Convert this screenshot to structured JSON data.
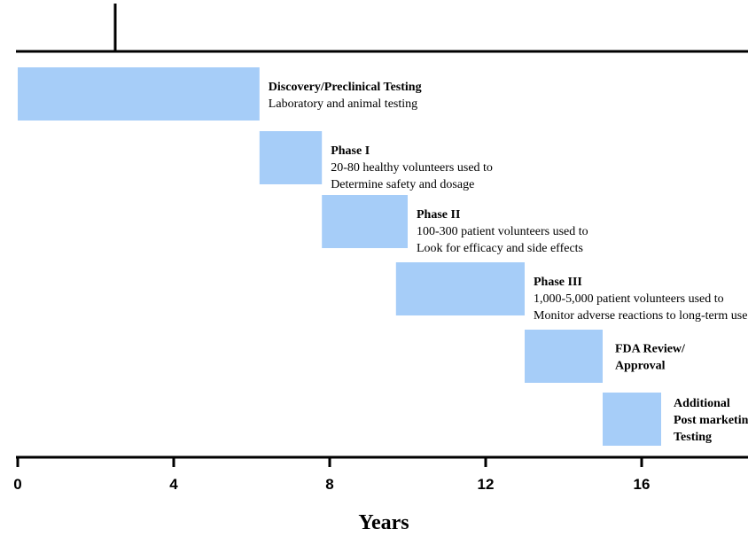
{
  "chart_data": {
    "type": "gantt",
    "xlabel": "Years",
    "xlim": [
      0,
      19.3
    ],
    "x_ticks": [
      0,
      4,
      8,
      12,
      16
    ],
    "x_tick_labels": [
      "0",
      "4",
      "8",
      "12",
      "16"
    ],
    "top_rule_marker_year": 2.5,
    "bar_color": "#a6cdf8",
    "phases": [
      {
        "start": 0.0,
        "end": 6.2,
        "title": "Discovery/Preclinical Testing",
        "lines": [
          "Laboratory and animal testing"
        ]
      },
      {
        "start": 6.2,
        "end": 7.8,
        "title": "Phase I",
        "lines": [
          "20-80 healthy volunteers used to",
          "Determine safety and dosage"
        ]
      },
      {
        "start": 7.8,
        "end": 10.0,
        "title": "Phase II",
        "lines": [
          "100-300 patient volunteers used to",
          "Look for efficacy and side effects"
        ]
      },
      {
        "start": 9.7,
        "end": 13.0,
        "title": "Phase III",
        "lines": [
          "1,000-5,000 patient volunteers used to",
          "Monitor adverse reactions to long-term use"
        ]
      },
      {
        "start": 13.0,
        "end": 15.0,
        "title": "FDA Review/",
        "lines": [
          "Approval"
        ],
        "bold_lines": true
      },
      {
        "start": 15.0,
        "end": 16.5,
        "title": "Additional",
        "lines": [
          "Post marketing",
          "Testing"
        ],
        "bold_lines": true
      }
    ]
  }
}
